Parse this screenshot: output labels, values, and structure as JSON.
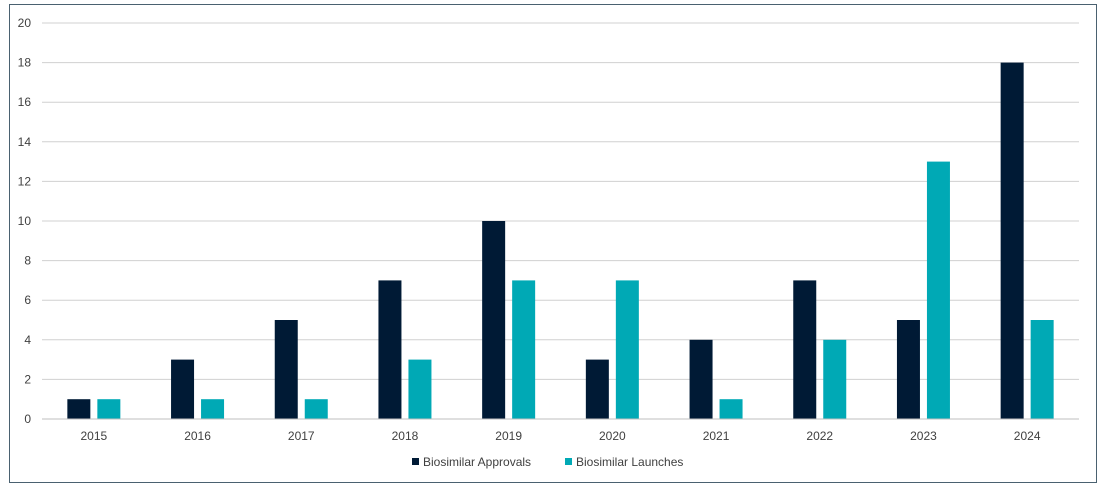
{
  "chart_data": {
    "type": "bar",
    "categories": [
      "2015",
      "2016",
      "2017",
      "2018",
      "2019",
      "2020",
      "2021",
      "2022",
      "2023",
      "2024"
    ],
    "series": [
      {
        "name": "Biosimilar Approvals",
        "color": "#001a35",
        "values": [
          1,
          3,
          5,
          7,
          10,
          3,
          4,
          7,
          5,
          18
        ]
      },
      {
        "name": "Biosimilar Launches",
        "color": "#00a9b5",
        "values": [
          1,
          1,
          1,
          3,
          7,
          7,
          1,
          4,
          13,
          5
        ]
      }
    ],
    "ylim": [
      0,
      20
    ],
    "yticks": [
      0,
      2,
      4,
      6,
      8,
      10,
      12,
      14,
      16,
      18,
      20
    ],
    "grid": true,
    "legend_position": "bottom-center",
    "title": "",
    "xlabel": "",
    "ylabel": ""
  }
}
